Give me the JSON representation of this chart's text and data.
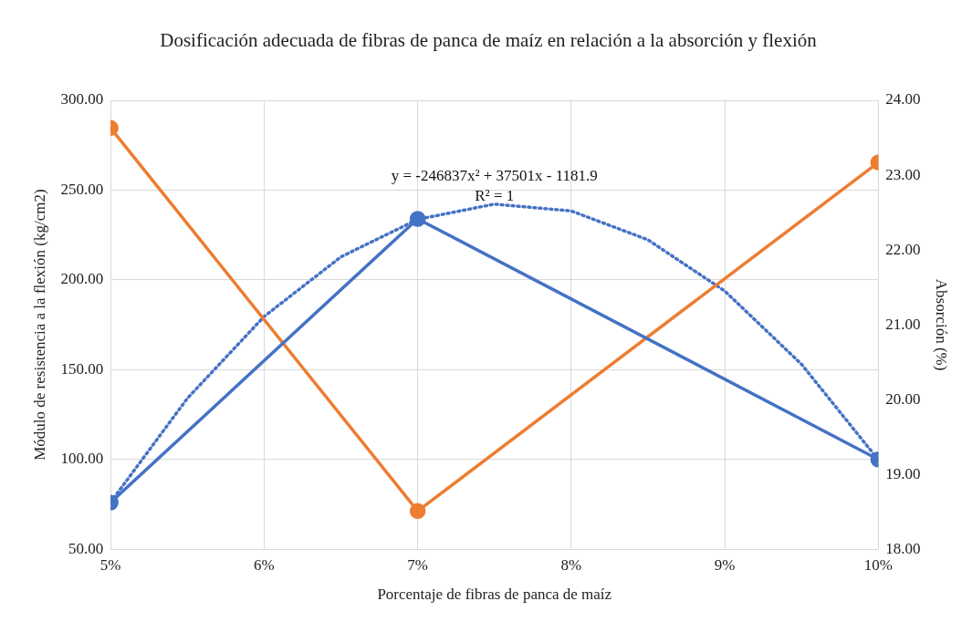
{
  "chart_data": {
    "type": "line",
    "title": "Dosificación adecuada de fibras de panca de maíz en relación a la absorción y flexión",
    "xlabel": "Porcentaje de fibras de panca de maíz",
    "ylabel": "Módulo de resistencia a la flexión (kg/cm2)",
    "y2label": "Absorción (%)",
    "x": [
      0.05,
      0.07,
      0.1
    ],
    "series": [
      {
        "color": "#4472c4",
        "values": [
          76,
          234,
          100
        ],
        "marker": "circle",
        "line_style": "solid"
      },
      {
        "color": "#ed7d31",
        "values": [
          23.63,
          18.51,
          23.17
        ],
        "axis": "y2",
        "marker": "circle",
        "line_style": "solid"
      },
      {
        "color": "#4472c4",
        "marker": "none",
        "line_style": "dotted",
        "x": [
          0.05,
          0.055,
          0.06,
          0.065,
          0.07,
          0.075,
          0.08,
          0.085,
          0.09,
          0.095,
          0.1
        ],
        "values": [
          76.1,
          134.0,
          179.6,
          212.8,
          233.7,
          242.2,
          238.4,
          222.3,
          193.8,
          153.0,
          99.8
        ]
      }
    ],
    "xlim": [
      0.05,
      0.1
    ],
    "xticks": [
      {
        "value": 0.05,
        "label": "5%"
      },
      {
        "value": 0.06,
        "label": "6%"
      },
      {
        "value": 0.07,
        "label": "7%"
      },
      {
        "value": 0.08,
        "label": "8%"
      },
      {
        "value": 0.09,
        "label": "9%"
      },
      {
        "value": 0.1,
        "label": "10%"
      }
    ],
    "ylim": [
      50,
      300
    ],
    "yticks": [
      {
        "value": 50,
        "label": "50.00"
      },
      {
        "value": 100,
        "label": "100.00"
      },
      {
        "value": 150,
        "label": "150.00"
      },
      {
        "value": 200,
        "label": "200.00"
      },
      {
        "value": 250,
        "label": "250.00"
      },
      {
        "value": 300,
        "label": "300.00"
      }
    ],
    "y2lim": [
      18,
      24
    ],
    "y2ticks": [
      {
        "value": 18,
        "label": "18.00"
      },
      {
        "value": 19,
        "label": "19.00"
      },
      {
        "value": 20,
        "label": "20.00"
      },
      {
        "value": 21,
        "label": "21.00"
      },
      {
        "value": 22,
        "label": "22.00"
      },
      {
        "value": 23,
        "label": "23.00"
      },
      {
        "value": 24,
        "label": "24.00"
      }
    ],
    "annotations": [
      "y = -246837x² + 37501x - 1181.9",
      "R² = 1"
    ],
    "grid": true,
    "legend": false
  }
}
